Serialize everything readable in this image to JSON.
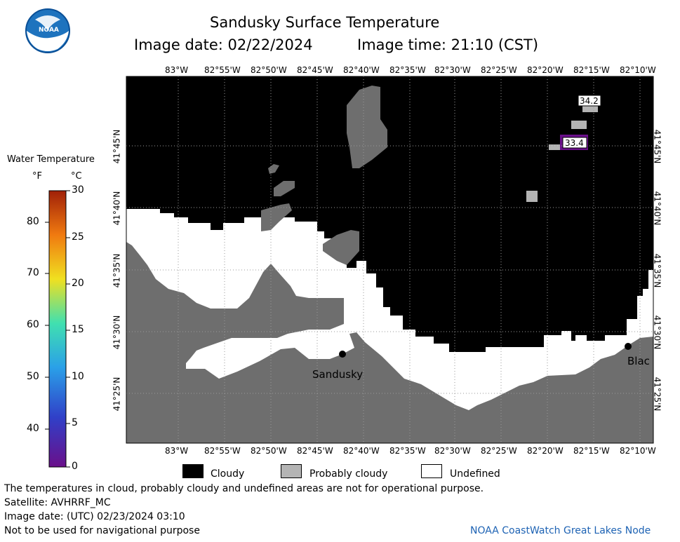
{
  "title": "Sandusky Surface Temperature",
  "image_date_label": "Image date: 02/22/2024",
  "image_time_label": "Image time: 21:10 (CST)",
  "logo_text": "NOAA",
  "scale": {
    "title": "Water Temperature",
    "unit_f": "°F",
    "unit_c": "°C",
    "f_ticks": [
      "80",
      "70",
      "60",
      "50",
      "40"
    ],
    "c_ticks": [
      "30",
      "25",
      "20",
      "15",
      "10",
      "5",
      "0"
    ],
    "colors": [
      "#6a0f8a",
      "#3040c8",
      "#2aa0e8",
      "#40e0b0",
      "#f0e020",
      "#f07a10",
      "#a02008"
    ]
  },
  "map": {
    "lon_labels": [
      "83°W",
      "82°55'W",
      "82°50'W",
      "82°45'W",
      "82°40'W",
      "82°35'W",
      "82°30'W",
      "82°25'W",
      "82°20'W",
      "82°15'W",
      "82°10'W"
    ],
    "lat_labels": [
      "41°45'N",
      "41°40'N",
      "41°35'N",
      "41°30'N",
      "41°25'N"
    ],
    "cities": [
      "Sandusky",
      "Blac"
    ],
    "value_labels": [
      "34.2",
      "33.4"
    ],
    "colors": {
      "cloudy": "#000000",
      "land": "#6e6e6e",
      "probably_cloudy": "#b4b4b4",
      "undefined": "#ffffff",
      "cold_water": "#6a0f8a"
    }
  },
  "legend": {
    "cloudy": "Cloudy",
    "probably_cloudy": "Probably cloudy",
    "undefined": "Undefined"
  },
  "footer": {
    "disclaimer": "The temperatures in cloud, probably cloudy and undefined areas are not for operational purpose.",
    "satellite": "Satellite: AVHRRF_MC",
    "utc_date": "Image date: (UTC) 02/23/2024  03:10",
    "nav_warning": "Not to be used for navigational purpose",
    "credit": "NOAA CoastWatch Great Lakes Node"
  }
}
